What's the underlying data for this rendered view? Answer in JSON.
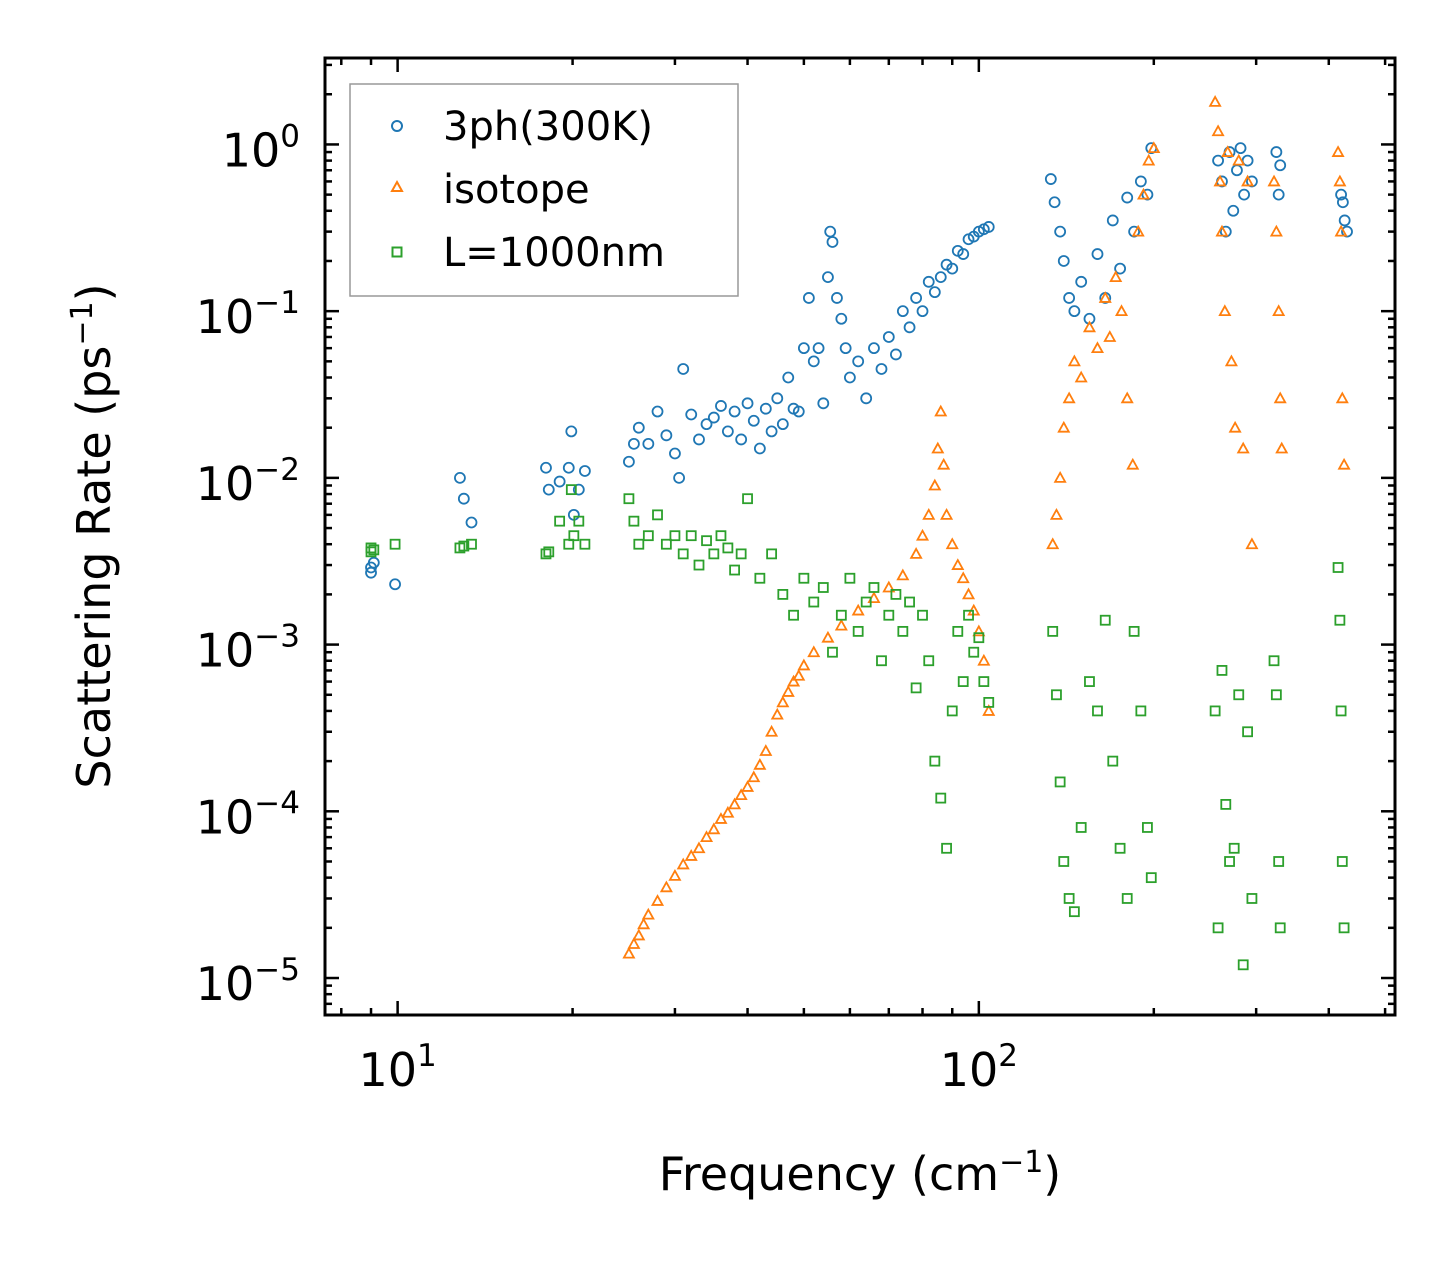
{
  "chart_data": {
    "type": "scatter",
    "xscale": "log",
    "yscale": "log",
    "xlim": [
      7.5,
      520
    ],
    "ylim": [
      6e-06,
      3.3
    ],
    "xlabel": "Frequency (cm",
    "xlabel_sup": "−1",
    "xlabel_end": ")",
    "ylabel": "Scattering Rate (ps",
    "ylabel_sup": "−1",
    "ylabel_end": ")",
    "x_ticks": [
      {
        "value": 10,
        "base": "10",
        "exp": "1"
      },
      {
        "value": 100,
        "base": "10",
        "exp": "2"
      }
    ],
    "y_ticks": [
      {
        "value": 1,
        "base": "10",
        "exp": "0"
      },
      {
        "value": 0.1,
        "base": "10",
        "exp": "−1"
      },
      {
        "value": 0.01,
        "base": "10",
        "exp": "−2"
      },
      {
        "value": 0.001,
        "base": "10",
        "exp": "−3"
      },
      {
        "value": 0.0001,
        "base": "10",
        "exp": "−4"
      },
      {
        "value": 1e-05,
        "base": "10",
        "exp": "−5"
      }
    ],
    "legend_position": "top-left",
    "series": [
      {
        "name": "3ph(300K)",
        "marker": "circle",
        "color": "#1f77b4",
        "x": [
          9.0,
          9.0,
          9.1,
          9.9,
          12.8,
          13.0,
          13.4,
          18.0,
          18.2,
          19.0,
          19.7,
          19.9,
          20.1,
          20.5,
          21.0,
          25,
          25.5,
          26,
          27,
          28,
          29,
          30,
          30.5,
          31,
          32,
          33,
          34,
          35,
          36,
          37,
          38,
          39,
          40,
          41,
          42,
          43,
          44,
          45,
          46,
          47,
          48,
          49,
          50,
          51,
          52,
          53,
          54,
          55,
          55.5,
          56,
          57,
          58,
          59,
          60,
          62,
          64,
          66,
          68,
          70,
          72,
          74,
          76,
          78,
          80,
          82,
          84,
          86,
          88,
          90,
          92,
          94,
          96,
          98,
          100,
          102,
          104,
          133,
          135,
          138,
          140,
          143,
          146,
          150,
          155,
          160,
          165,
          170,
          175,
          180,
          185,
          190,
          195,
          198,
          258,
          262,
          266,
          270,
          274,
          278,
          282,
          286,
          290,
          295,
          325,
          328,
          330,
          420,
          423,
          426,
          430
        ],
        "y": [
          0.0029,
          0.0027,
          0.0031,
          0.0023,
          0.01,
          0.0075,
          0.0054,
          0.0115,
          0.0085,
          0.0095,
          0.0115,
          0.019,
          0.006,
          0.0085,
          0.011,
          0.0125,
          0.016,
          0.02,
          0.016,
          0.025,
          0.018,
          0.014,
          0.01,
          0.045,
          0.024,
          0.017,
          0.021,
          0.023,
          0.027,
          0.019,
          0.025,
          0.017,
          0.028,
          0.022,
          0.015,
          0.026,
          0.019,
          0.03,
          0.021,
          0.04,
          0.026,
          0.025,
          0.06,
          0.12,
          0.05,
          0.06,
          0.028,
          0.16,
          0.3,
          0.26,
          0.12,
          0.09,
          0.06,
          0.04,
          0.05,
          0.03,
          0.06,
          0.045,
          0.07,
          0.055,
          0.1,
          0.08,
          0.12,
          0.1,
          0.15,
          0.13,
          0.16,
          0.19,
          0.18,
          0.23,
          0.22,
          0.27,
          0.28,
          0.3,
          0.31,
          0.32,
          0.62,
          0.45,
          0.3,
          0.2,
          0.12,
          0.1,
          0.15,
          0.09,
          0.22,
          0.12,
          0.35,
          0.18,
          0.48,
          0.3,
          0.6,
          0.5,
          0.95,
          0.8,
          0.6,
          0.3,
          0.9,
          0.4,
          0.7,
          0.95,
          0.5,
          0.8,
          0.6,
          0.9,
          0.5,
          0.75,
          0.5,
          0.45,
          0.35,
          0.3
        ]
      },
      {
        "name": "isotope",
        "marker": "triangle",
        "color": "#ff7f0e",
        "x": [
          25,
          25.5,
          26,
          26.5,
          27,
          28,
          29,
          30,
          31,
          32,
          33,
          34,
          35,
          36,
          37,
          38,
          39,
          40,
          41,
          42,
          43,
          44,
          45,
          46,
          47,
          48,
          49,
          50,
          52,
          55,
          58,
          62,
          66,
          70,
          74,
          78,
          80,
          82,
          84,
          85,
          86,
          87,
          88,
          90,
          92,
          94,
          96,
          98,
          100,
          102,
          104,
          134,
          136,
          138,
          140,
          143,
          146,
          150,
          155,
          160,
          165,
          168,
          172,
          176,
          180,
          184,
          188,
          192,
          196,
          200,
          255,
          258,
          260,
          262,
          265,
          268,
          272,
          276,
          280,
          285,
          290,
          295,
          322,
          325,
          328,
          330,
          332,
          415,
          418,
          420,
          422,
          425
        ],
        "y": [
          1.4e-05,
          1.6e-05,
          1.8e-05,
          2.1e-05,
          2.4e-05,
          2.9e-05,
          3.5e-05,
          4.1e-05,
          4.8e-05,
          5.4e-05,
          6e-05,
          7e-05,
          7.8e-05,
          9e-05,
          9.8e-05,
          0.00011,
          0.000125,
          0.00014,
          0.00016,
          0.00019,
          0.00023,
          0.0003,
          0.00038,
          0.00045,
          0.00052,
          0.0006,
          0.00065,
          0.00075,
          0.0009,
          0.0011,
          0.0013,
          0.0016,
          0.0019,
          0.0022,
          0.0026,
          0.0035,
          0.0045,
          0.006,
          0.009,
          0.015,
          0.025,
          0.012,
          0.006,
          0.004,
          0.003,
          0.0025,
          0.002,
          0.0016,
          0.0012,
          0.0008,
          0.0004,
          0.004,
          0.006,
          0.01,
          0.02,
          0.03,
          0.05,
          0.04,
          0.08,
          0.06,
          0.12,
          0.07,
          0.16,
          0.1,
          0.03,
          0.012,
          0.3,
          0.5,
          0.8,
          0.95,
          1.8,
          1.2,
          0.6,
          0.3,
          0.1,
          0.9,
          0.05,
          0.02,
          0.8,
          0.015,
          0.6,
          0.004,
          0.6,
          0.3,
          0.1,
          0.03,
          0.015,
          0.9,
          0.6,
          0.3,
          0.03,
          0.012
        ]
      },
      {
        "name": "L=1000nm",
        "marker": "square",
        "color": "#2ca02c",
        "x": [
          9.0,
          9.0,
          9.1,
          9.9,
          12.8,
          13.0,
          13.4,
          18.0,
          18.2,
          19.0,
          19.7,
          19.9,
          20.1,
          20.5,
          21.0,
          25,
          25.5,
          26,
          27,
          28,
          29,
          30,
          31,
          32,
          33,
          34,
          35,
          36,
          37,
          38,
          39,
          40,
          42,
          44,
          46,
          48,
          50,
          52,
          54,
          56,
          58,
          60,
          62,
          64,
          66,
          68,
          70,
          72,
          74,
          76,
          78,
          80,
          82,
          84,
          86,
          88,
          90,
          92,
          94,
          96,
          98,
          100,
          102,
          104,
          134,
          136,
          138,
          140,
          143,
          146,
          150,
          155,
          160,
          165,
          170,
          175,
          180,
          185,
          190,
          195,
          198,
          255,
          258,
          262,
          266,
          270,
          275,
          280,
          285,
          290,
          295,
          322,
          325,
          328,
          330,
          415,
          418,
          420,
          422,
          425
        ],
        "y": [
          0.0038,
          0.0036,
          0.0037,
          0.004,
          0.0038,
          0.0039,
          0.004,
          0.0035,
          0.0036,
          0.0055,
          0.004,
          0.0085,
          0.0045,
          0.0055,
          0.004,
          0.0075,
          0.0055,
          0.004,
          0.0045,
          0.006,
          0.004,
          0.0045,
          0.0035,
          0.0045,
          0.003,
          0.0042,
          0.0035,
          0.0045,
          0.0038,
          0.0028,
          0.0035,
          0.0075,
          0.0025,
          0.0035,
          0.002,
          0.0015,
          0.0025,
          0.0018,
          0.0022,
          0.0009,
          0.0015,
          0.0025,
          0.0012,
          0.0018,
          0.0022,
          0.0008,
          0.0015,
          0.002,
          0.0012,
          0.0018,
          0.00055,
          0.0015,
          0.0008,
          0.0002,
          0.00012,
          6e-05,
          0.0004,
          0.0012,
          0.0006,
          0.0015,
          0.0009,
          0.0011,
          0.0006,
          0.00045,
          0.0012,
          0.0005,
          0.00015,
          5e-05,
          3e-05,
          2.5e-05,
          8e-05,
          0.0006,
          0.0004,
          0.0014,
          0.0002,
          6e-05,
          3e-05,
          0.0012,
          0.0004,
          8e-05,
          4e-05,
          0.0004,
          2e-05,
          0.0007,
          0.00011,
          5e-05,
          6e-05,
          0.0005,
          1.2e-05,
          0.0003,
          3e-05,
          0.0008,
          0.0005,
          5e-05,
          2e-05,
          0.0029,
          0.0014,
          0.0004,
          5e-05,
          2e-05
        ]
      }
    ]
  }
}
